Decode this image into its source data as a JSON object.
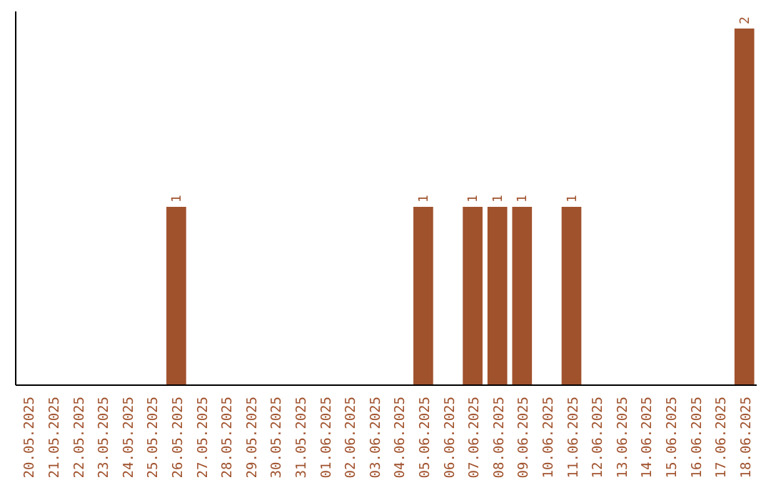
{
  "chart_data": {
    "type": "bar",
    "categories": [
      "20.05.2025",
      "21.05.2025",
      "22.05.2025",
      "23.05.2025",
      "24.05.2025",
      "25.05.2025",
      "26.05.2025",
      "27.05.2025",
      "28.05.2025",
      "29.05.2025",
      "30.05.2025",
      "31.05.2025",
      "01.06.2025",
      "02.06.2025",
      "03.06.2025",
      "04.06.2025",
      "05.06.2025",
      "06.06.2025",
      "07.06.2025",
      "08.06.2025",
      "09.06.2025",
      "10.06.2025",
      "11.06.2025",
      "12.06.2025",
      "13.06.2025",
      "14.06.2025",
      "15.06.2025",
      "16.06.2025",
      "17.06.2025",
      "18.06.2025"
    ],
    "values": [
      0,
      0,
      0,
      0,
      0,
      0,
      1,
      0,
      0,
      0,
      0,
      0,
      0,
      0,
      0,
      0,
      1,
      0,
      1,
      1,
      1,
      0,
      1,
      0,
      0,
      0,
      0,
      0,
      0,
      2
    ],
    "value_labels": [
      null,
      null,
      null,
      null,
      null,
      null,
      "1",
      null,
      null,
      null,
      null,
      null,
      null,
      null,
      null,
      null,
      "1",
      null,
      "1",
      "1",
      "1",
      null,
      "1",
      null,
      null,
      null,
      null,
      null,
      null,
      "2"
    ],
    "color": "#a0522d",
    "tick_labels": "x"
  }
}
